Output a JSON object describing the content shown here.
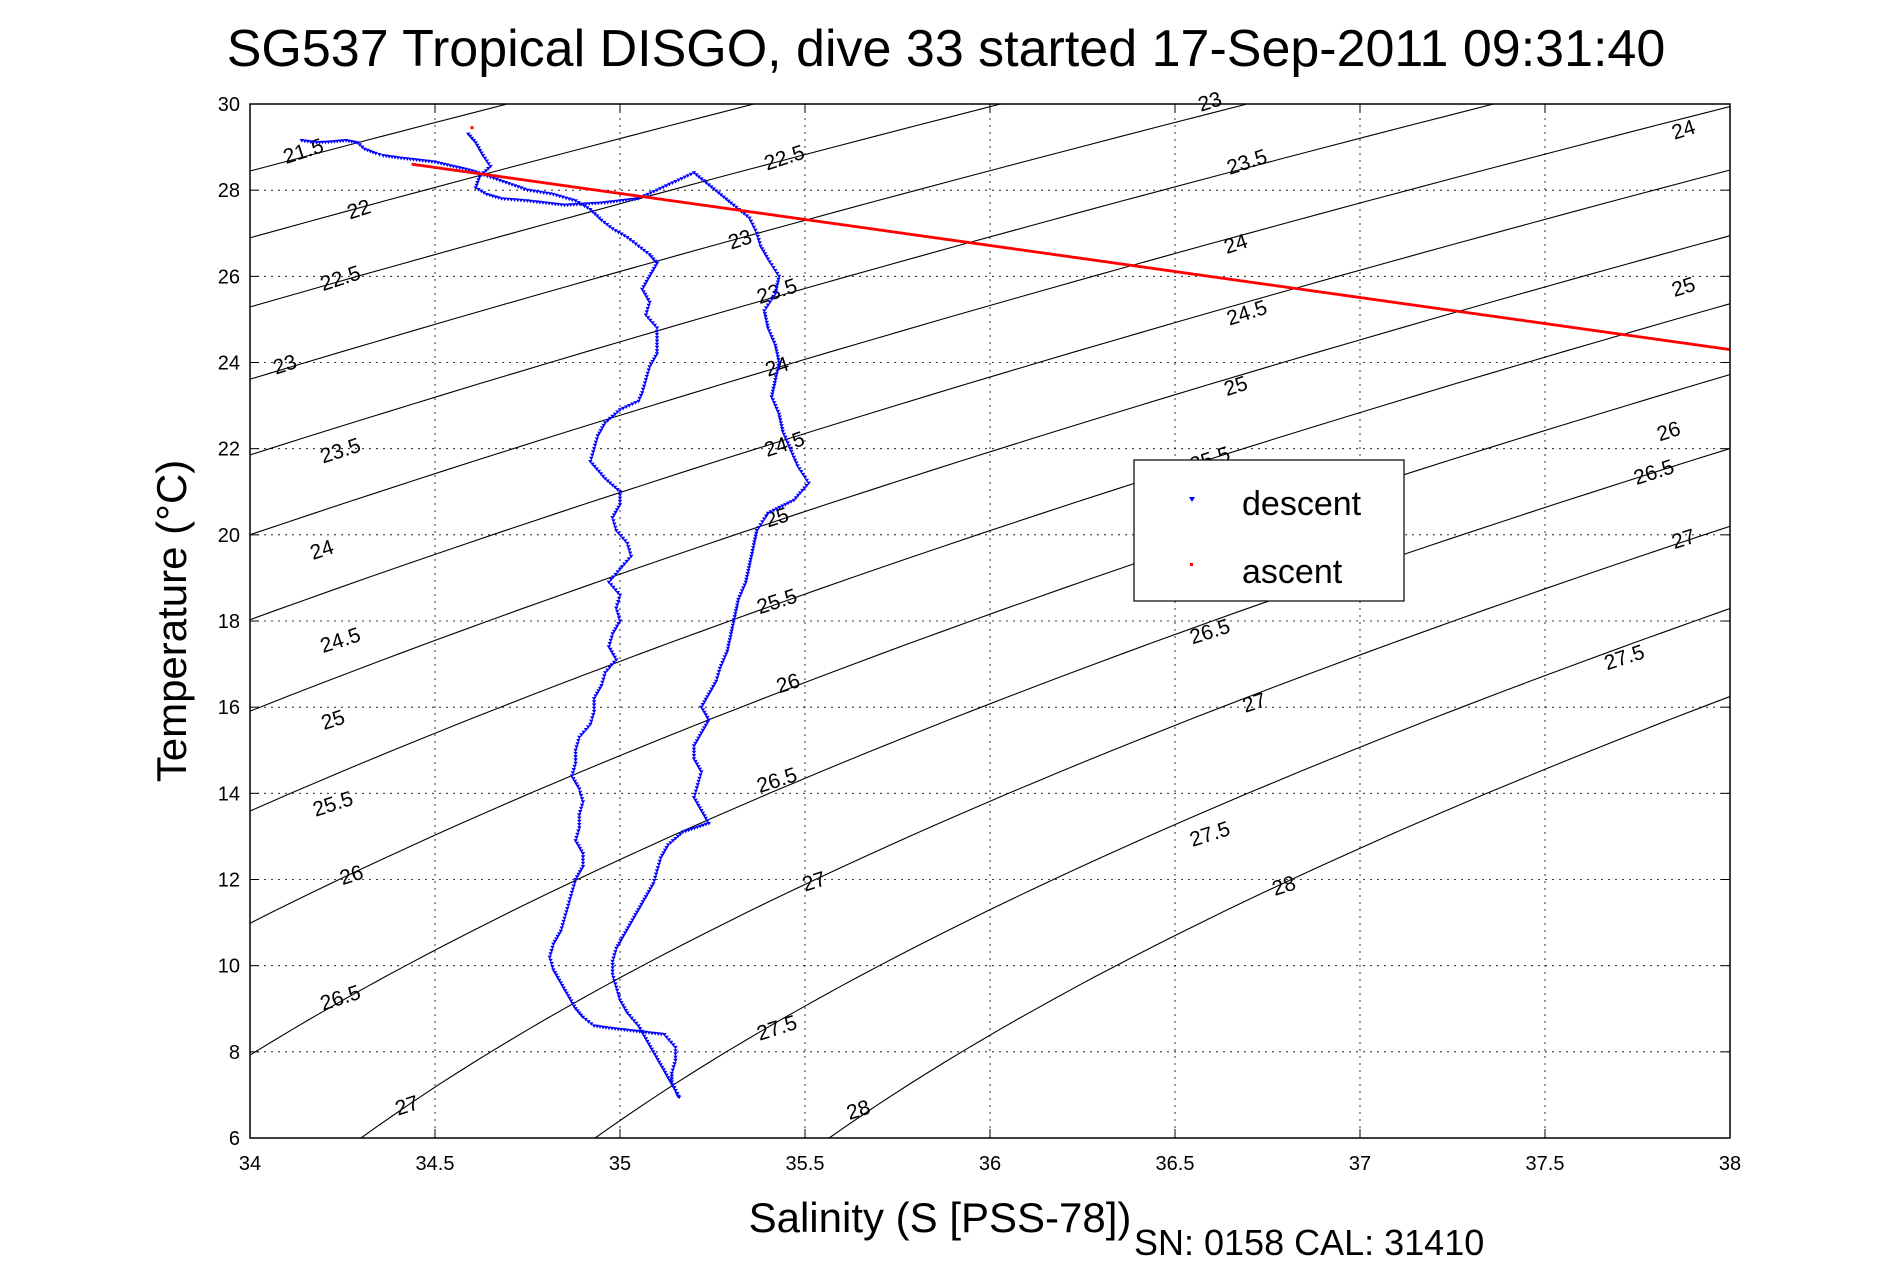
{
  "chart_data": {
    "type": "scatter",
    "title": "SG537 Tropical DISGO, dive 33 started 17-Sep-2011 09:31:40",
    "xlabel": "Salinity (S [PSS-78])",
    "ylabel": "Temperature (°C)",
    "xlim": [
      34,
      38
    ],
    "ylim": [
      6,
      30
    ],
    "xticks": [
      34,
      34.5,
      35,
      35.5,
      36,
      36.5,
      37,
      37.5,
      38
    ],
    "xtick_labels": [
      "34",
      "34.5",
      "35",
      "35.5",
      "36",
      "36.5",
      "37",
      "37.5",
      "38"
    ],
    "yticks": [
      6,
      8,
      10,
      12,
      14,
      16,
      18,
      20,
      22,
      24,
      26,
      28,
      30
    ],
    "ytick_labels": [
      "6",
      "8",
      "10",
      "12",
      "14",
      "16",
      "18",
      "20",
      "22",
      "24",
      "26",
      "28",
      "30"
    ],
    "grid": true,
    "legend_position": "center-right",
    "contours": {
      "quantity": "potential density anomaly (sigma-theta)",
      "line_color": "#000000",
      "levels": [
        21.5,
        22,
        22.5,
        23,
        23.5,
        24,
        24.5,
        25,
        25.5,
        26,
        26.5,
        27,
        27.5,
        28
      ],
      "labels": [
        {
          "text": "21.5",
          "level": 21.5,
          "x": 34.15,
          "y": 28.75
        },
        {
          "text": "22",
          "level": 22,
          "x": 34.3,
          "y": 27.4
        },
        {
          "text": "22.5",
          "level": 22.5,
          "x": 34.25,
          "y": 25.8
        },
        {
          "text": "23",
          "level": 23,
          "x": 34.1,
          "y": 23.8
        },
        {
          "text": "23.5",
          "level": 23.5,
          "x": 34.25,
          "y": 21.8
        },
        {
          "text": "24",
          "level": 24,
          "x": 34.2,
          "y": 19.5
        },
        {
          "text": "24.5",
          "level": 24.5,
          "x": 34.25,
          "y": 17.4
        },
        {
          "text": "25",
          "level": 25,
          "x": 34.23,
          "y": 15.55
        },
        {
          "text": "25.5",
          "level": 25.5,
          "x": 34.23,
          "y": 13.6
        },
        {
          "text": "26",
          "level": 26,
          "x": 34.28,
          "y": 11.95
        },
        {
          "text": "26.5",
          "level": 26.5,
          "x": 34.25,
          "y": 9.1
        },
        {
          "text": "27",
          "level": 27,
          "x": 34.43,
          "y": 6.6
        },
        {
          "text": "22.5",
          "level": 22.5,
          "x": 35.45,
          "y": 28.6
        },
        {
          "text": "23",
          "level": 23,
          "x": 35.33,
          "y": 26.7
        },
        {
          "text": "23.5",
          "level": 23.5,
          "x": 35.43,
          "y": 25.5
        },
        {
          "text": "24",
          "level": 24,
          "x": 35.43,
          "y": 23.75
        },
        {
          "text": "24.5",
          "level": 24.5,
          "x": 35.45,
          "y": 21.95
        },
        {
          "text": "25",
          "level": 25,
          "x": 35.43,
          "y": 20.25
        },
        {
          "text": "25.5",
          "level": 25.5,
          "x": 35.43,
          "y": 18.3
        },
        {
          "text": "26",
          "level": 26,
          "x": 35.46,
          "y": 16.4
        },
        {
          "text": "26.5",
          "level": 26.5,
          "x": 35.43,
          "y": 14.15
        },
        {
          "text": "27",
          "level": 27,
          "x": 35.53,
          "y": 11.8
        },
        {
          "text": "27.5",
          "level": 27.5,
          "x": 35.43,
          "y": 8.4
        },
        {
          "text": "28",
          "level": 28,
          "x": 35.65,
          "y": 6.5
        },
        {
          "text": "23",
          "level": 23,
          "x": 36.6,
          "y": 29.9
        },
        {
          "text": "23.5",
          "level": 23.5,
          "x": 36.7,
          "y": 28.5
        },
        {
          "text": "24",
          "level": 24,
          "x": 36.67,
          "y": 26.6
        },
        {
          "text": "24.5",
          "level": 24.5,
          "x": 36.7,
          "y": 25.0
        },
        {
          "text": "25",
          "level": 25,
          "x": 36.67,
          "y": 23.3
        },
        {
          "text": "25.5",
          "level": 25.5,
          "x": 36.6,
          "y": 21.6
        },
        {
          "text": "26.5",
          "level": 26.5,
          "x": 36.6,
          "y": 17.6
        },
        {
          "text": "27",
          "level": 27,
          "x": 36.72,
          "y": 15.95
        },
        {
          "text": "27.5",
          "level": 27.5,
          "x": 36.6,
          "y": 12.9
        },
        {
          "text": "28",
          "level": 28,
          "x": 36.8,
          "y": 11.7
        },
        {
          "text": "24",
          "level": 24,
          "x": 37.88,
          "y": 29.25
        },
        {
          "text": "25",
          "level": 25,
          "x": 37.88,
          "y": 25.6
        },
        {
          "text": "26",
          "level": 26,
          "x": 37.84,
          "y": 22.25
        },
        {
          "text": "26.5",
          "level": 26.5,
          "x": 37.8,
          "y": 21.3
        },
        {
          "text": "27",
          "level": 27,
          "x": 37.88,
          "y": 19.75
        },
        {
          "text": "27.5",
          "level": 27.5,
          "x": 37.72,
          "y": 17.0
        }
      ]
    },
    "series": [
      {
        "name": "descent",
        "color": "#0000ff",
        "marker": "triangle-down",
        "branches": [
          {
            "points": [
              [
                34.14,
                29.15
              ],
              [
                34.18,
                29.1
              ],
              [
                34.22,
                29.12
              ],
              [
                34.26,
                29.15
              ],
              [
                34.29,
                29.1
              ],
              [
                34.31,
                28.95
              ],
              [
                34.34,
                28.85
              ],
              [
                34.36,
                28.8
              ],
              [
                34.4,
                28.75
              ],
              [
                34.45,
                28.7
              ],
              [
                34.5,
                28.65
              ],
              [
                34.55,
                28.55
              ],
              [
                34.6,
                28.45
              ],
              [
                34.65,
                28.3
              ],
              [
                34.7,
                28.15
              ],
              [
                34.75,
                28.0
              ],
              [
                34.82,
                27.9
              ],
              [
                34.88,
                27.75
              ],
              [
                34.92,
                27.55
              ],
              [
                34.95,
                27.3
              ],
              [
                34.98,
                27.1
              ],
              [
                35.02,
                26.9
              ],
              [
                35.05,
                26.7
              ],
              [
                35.08,
                26.5
              ],
              [
                35.1,
                26.3
              ],
              [
                35.08,
                26.0
              ],
              [
                35.06,
                25.7
              ],
              [
                35.08,
                25.4
              ],
              [
                35.07,
                25.1
              ],
              [
                35.1,
                24.8
              ],
              [
                35.1,
                24.5
              ],
              [
                35.1,
                24.2
              ],
              [
                35.08,
                23.9
              ],
              [
                35.07,
                23.6
              ],
              [
                35.06,
                23.3
              ],
              [
                35.05,
                23.1
              ],
              [
                35.0,
                22.9
              ],
              [
                34.96,
                22.6
              ],
              [
                34.94,
                22.3
              ],
              [
                34.93,
                22.0
              ],
              [
                34.92,
                21.7
              ],
              [
                34.96,
                21.3
              ],
              [
                35.0,
                21.0
              ],
              [
                35.0,
                20.7
              ],
              [
                34.98,
                20.4
              ],
              [
                34.99,
                20.1
              ],
              [
                35.02,
                19.8
              ],
              [
                35.03,
                19.5
              ],
              [
                35.0,
                19.2
              ],
              [
                34.97,
                18.9
              ],
              [
                35.0,
                18.6
              ],
              [
                34.99,
                18.3
              ],
              [
                35.0,
                18.0
              ],
              [
                34.98,
                17.7
              ],
              [
                34.97,
                17.4
              ],
              [
                34.99,
                17.1
              ],
              [
                34.96,
                16.8
              ],
              [
                34.95,
                16.5
              ],
              [
                34.93,
                16.2
              ],
              [
                34.93,
                15.9
              ],
              [
                34.92,
                15.6
              ],
              [
                34.89,
                15.3
              ],
              [
                34.88,
                15.0
              ],
              [
                34.88,
                14.7
              ],
              [
                34.87,
                14.4
              ],
              [
                34.89,
                14.1
              ],
              [
                34.9,
                13.8
              ],
              [
                34.89,
                13.5
              ],
              [
                34.89,
                13.2
              ],
              [
                34.88,
                12.9
              ],
              [
                34.9,
                12.6
              ],
              [
                34.9,
                12.3
              ],
              [
                34.88,
                12.0
              ],
              [
                34.87,
                11.7
              ],
              [
                34.86,
                11.4
              ],
              [
                34.85,
                11.1
              ],
              [
                34.84,
                10.8
              ],
              [
                34.82,
                10.5
              ],
              [
                34.81,
                10.2
              ],
              [
                34.82,
                9.9
              ],
              [
                34.84,
                9.6
              ],
              [
                34.86,
                9.3
              ],
              [
                34.88,
                9.0
              ],
              [
                34.9,
                8.8
              ],
              [
                34.93,
                8.6
              ],
              [
                34.97,
                8.55
              ],
              [
                35.02,
                8.5
              ],
              [
                35.07,
                8.45
              ],
              [
                35.12,
                8.4
              ],
              [
                35.15,
                8.1
              ],
              [
                35.15,
                7.8
              ],
              [
                35.14,
                7.5
              ],
              [
                35.14,
                7.3
              ],
              [
                35.15,
                7.1
              ],
              [
                35.16,
                6.95
              ],
              [
                35.16,
                6.85
              ]
            ]
          },
          {
            "points": [
              [
                34.59,
                29.3
              ],
              [
                34.61,
                29.1
              ],
              [
                34.63,
                28.8
              ],
              [
                34.65,
                28.55
              ],
              [
                34.62,
                28.3
              ],
              [
                34.61,
                28.05
              ],
              [
                34.64,
                27.9
              ],
              [
                34.68,
                27.8
              ],
              [
                34.75,
                27.75
              ],
              [
                34.85,
                27.65
              ],
              [
                34.95,
                27.7
              ],
              [
                35.05,
                27.8
              ],
              [
                35.1,
                28.0
              ],
              [
                35.15,
                28.2
              ],
              [
                35.2,
                28.4
              ],
              [
                35.3,
                27.7
              ],
              [
                35.35,
                27.35
              ],
              [
                35.37,
                27.0
              ],
              [
                35.38,
                26.7
              ],
              [
                35.4,
                26.4
              ],
              [
                35.43,
                26.0
              ],
              [
                35.42,
                25.6
              ],
              [
                35.39,
                25.2
              ],
              [
                35.4,
                24.8
              ],
              [
                35.42,
                24.4
              ],
              [
                35.43,
                24.0
              ],
              [
                35.42,
                23.6
              ],
              [
                35.41,
                23.2
              ],
              [
                35.43,
                22.8
              ],
              [
                35.44,
                22.4
              ],
              [
                35.46,
                22.0
              ],
              [
                35.48,
                21.6
              ],
              [
                35.51,
                21.2
              ],
              [
                35.47,
                20.8
              ],
              [
                35.4,
                20.5
              ],
              [
                35.37,
                20.1
              ],
              [
                35.36,
                19.7
              ],
              [
                35.35,
                19.3
              ],
              [
                35.34,
                18.9
              ],
              [
                35.32,
                18.5
              ],
              [
                35.31,
                18.1
              ],
              [
                35.3,
                17.7
              ],
              [
                35.29,
                17.3
              ],
              [
                35.27,
                16.9
              ],
              [
                35.26,
                16.6
              ],
              [
                35.24,
                16.3
              ],
              [
                35.22,
                16.0
              ],
              [
                35.24,
                15.7
              ],
              [
                35.22,
                15.4
              ],
              [
                35.2,
                15.1
              ],
              [
                35.2,
                14.8
              ],
              [
                35.22,
                14.5
              ],
              [
                35.21,
                14.2
              ],
              [
                35.2,
                13.9
              ],
              [
                35.22,
                13.6
              ],
              [
                35.24,
                13.3
              ],
              [
                35.17,
                13.1
              ],
              [
                35.13,
                12.8
              ],
              [
                35.11,
                12.5
              ],
              [
                35.1,
                12.2
              ],
              [
                35.09,
                11.9
              ],
              [
                35.07,
                11.6
              ],
              [
                35.05,
                11.3
              ],
              [
                35.03,
                11.0
              ],
              [
                35.01,
                10.7
              ],
              [
                34.99,
                10.4
              ],
              [
                34.98,
                10.1
              ],
              [
                34.98,
                9.8
              ],
              [
                34.99,
                9.5
              ],
              [
                35.0,
                9.2
              ],
              [
                35.02,
                8.9
              ],
              [
                35.05,
                8.6
              ],
              [
                35.07,
                8.3
              ],
              [
                35.09,
                8.0
              ],
              [
                35.11,
                7.7
              ],
              [
                35.13,
                7.4
              ],
              [
                35.15,
                7.1
              ],
              [
                35.16,
                6.9
              ]
            ]
          }
        ]
      },
      {
        "name": "ascent",
        "color": "#ff0000",
        "marker": "point",
        "points": [
          [
            34.44,
            28.6
          ],
          [
            38.0,
            24.3
          ]
        ],
        "extra_points": [
          [
            34.6,
            29.45
          ]
        ]
      }
    ]
  },
  "legend": {
    "entries": [
      {
        "label": "descent",
        "color": "#0000ff"
      },
      {
        "label": "ascent",
        "color": "#ff0000"
      }
    ]
  },
  "footer": {
    "serial": "SN: 0158  CAL: 31410"
  }
}
